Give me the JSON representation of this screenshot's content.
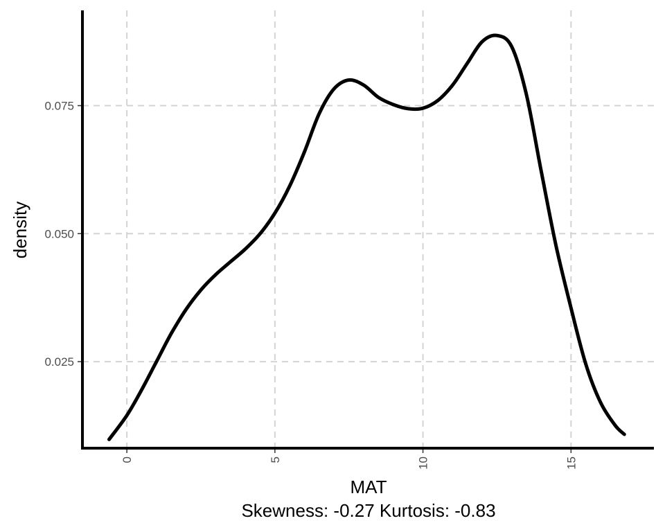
{
  "chart_data": {
    "type": "line",
    "xlabel": "MAT",
    "ylabel": "density",
    "caption": "Skewness: -0.27 Kurtosis: -0.83",
    "xlim": [
      -1.5,
      17.8
    ],
    "ylim": [
      0.0081,
      0.0936
    ],
    "x_ticks": [
      {
        "value": 0,
        "label": "0"
      },
      {
        "value": 5,
        "label": "5"
      },
      {
        "value": 10,
        "label": "10"
      },
      {
        "value": 15,
        "label": "15"
      }
    ],
    "y_ticks": [
      {
        "value": 0.025,
        "label": "0.025"
      },
      {
        "value": 0.05,
        "label": "0.050"
      },
      {
        "value": 0.075,
        "label": "0.075"
      }
    ],
    "grid": true,
    "grid_style": "dashed",
    "line_color": "#000000",
    "grid_color": "#d3d3d3",
    "series": [
      {
        "x": [
          -0.6,
          0.0,
          0.5,
          1.0,
          1.5,
          2.0,
          2.5,
          3.0,
          3.5,
          4.0,
          4.5,
          5.0,
          5.5,
          6.0,
          6.5,
          7.0,
          7.5,
          8.0,
          8.5,
          9.0,
          9.5,
          10.0,
          10.5,
          11.0,
          11.5,
          12.0,
          12.5,
          13.0,
          13.5,
          14.0,
          14.5,
          15.0,
          15.5,
          16.0,
          16.5,
          16.8
        ],
        "y": [
          0.0098,
          0.0145,
          0.0195,
          0.025,
          0.0305,
          0.0352,
          0.039,
          0.042,
          0.0445,
          0.047,
          0.05,
          0.054,
          0.0593,
          0.066,
          0.0735,
          0.0783,
          0.08,
          0.079,
          0.0766,
          0.0752,
          0.0744,
          0.0745,
          0.076,
          0.079,
          0.0833,
          0.0875,
          0.0887,
          0.0865,
          0.077,
          0.062,
          0.0475,
          0.0355,
          0.0245,
          0.017,
          0.0125,
          0.0108
        ]
      }
    ]
  }
}
